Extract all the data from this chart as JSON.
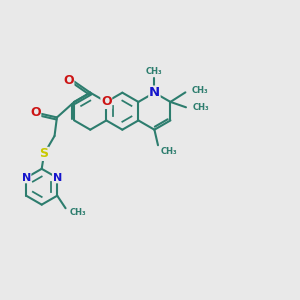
{
  "bg_color": "#e9e9e9",
  "bond_color": "#2d7d6e",
  "bond_width": 1.5,
  "N_color": "#1515cc",
  "O_color": "#cc1515",
  "S_color": "#c8c800",
  "font_size": 7.5,
  "fig_size": [
    3.0,
    3.0
  ],
  "dpi": 100,
  "ring_r": 0.62,
  "xlim": [
    0,
    10
  ],
  "ylim": [
    0,
    10
  ]
}
